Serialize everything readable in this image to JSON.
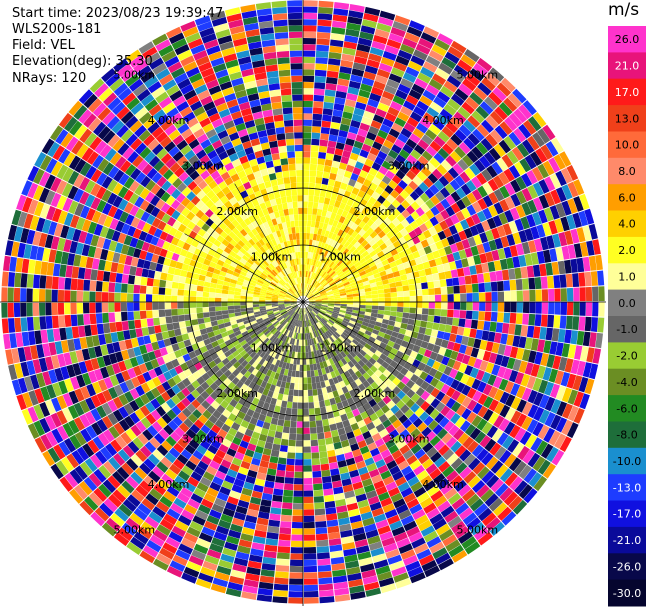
{
  "header": {
    "start_time": "Start time: 2023/08/23 19:39:47",
    "instrument": "WLS200s-181",
    "field": "Field: VEL",
    "elevation": "Elevation(deg): 35.30",
    "nrays": "NRays: 120"
  },
  "colorbar": {
    "unit": "m/s",
    "ticks": [
      "26.0",
      "21.0",
      "17.0",
      "13.0",
      "10.0",
      "8.0",
      "6.0",
      "4.0",
      "2.0",
      "1.0",
      "0.0",
      "-1.0",
      "-2.0",
      "-4.0",
      "-6.0",
      "-8.0",
      "-10.0",
      "-13.0",
      "-17.0",
      "-21.0",
      "-26.0",
      "-30.0"
    ],
    "colors": [
      "#ff33cc",
      "#e8147a",
      "#ff1a1a",
      "#f0401a",
      "#ff6a3a",
      "#ff8a6a",
      "#ff9e00",
      "#ffd000",
      "#ffff22",
      "#ffff99",
      "#808080",
      "#666666",
      "#99cc33",
      "#6b8e23",
      "#228b22",
      "#1e6e3a",
      "#1a8fcf",
      "#1e3cff",
      "#1010e0",
      "#0a0a9a",
      "#08084a",
      "#05052e"
    ]
  },
  "chart_data": {
    "type": "ppi_radar",
    "field": "VEL",
    "units": "m/s",
    "nrays": 120,
    "elevation_deg": 35.3,
    "range_rings_km": [
      "1.00km",
      "2.00km",
      "3.00km",
      "4.00km",
      "5.00km"
    ],
    "max_range_km": 5.3,
    "color_scale_ticks": [
      26.0,
      21.0,
      17.0,
      13.0,
      10.0,
      8.0,
      6.0,
      4.0,
      2.0,
      1.0,
      0.0,
      -1.0,
      -2.0,
      -4.0,
      -6.0,
      -8.0,
      -10.0,
      -13.0,
      -17.0,
      -21.0,
      -26.0,
      -30.0
    ],
    "pattern": {
      "inner_region_km": 2.4,
      "north_half": "positive velocities 1-6 m/s (yellow/orange) with scattered near-zero gray",
      "south_half": "negative velocities -1 to -6 m/s (olive/green) with scattered near-zero gray",
      "outer_region": "noisy random values spanning full -30 to 26 m/s range"
    }
  }
}
